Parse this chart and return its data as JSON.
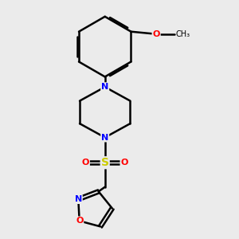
{
  "bg_color": "#ebebeb",
  "bond_color": "#000000",
  "bond_width": 1.8,
  "atom_colors": {
    "N": "#0000ff",
    "O": "#ff0000",
    "S": "#cccc00",
    "C": "#000000"
  },
  "font_size": 8,
  "fig_size": [
    3.0,
    3.0
  ],
  "dpi": 100
}
